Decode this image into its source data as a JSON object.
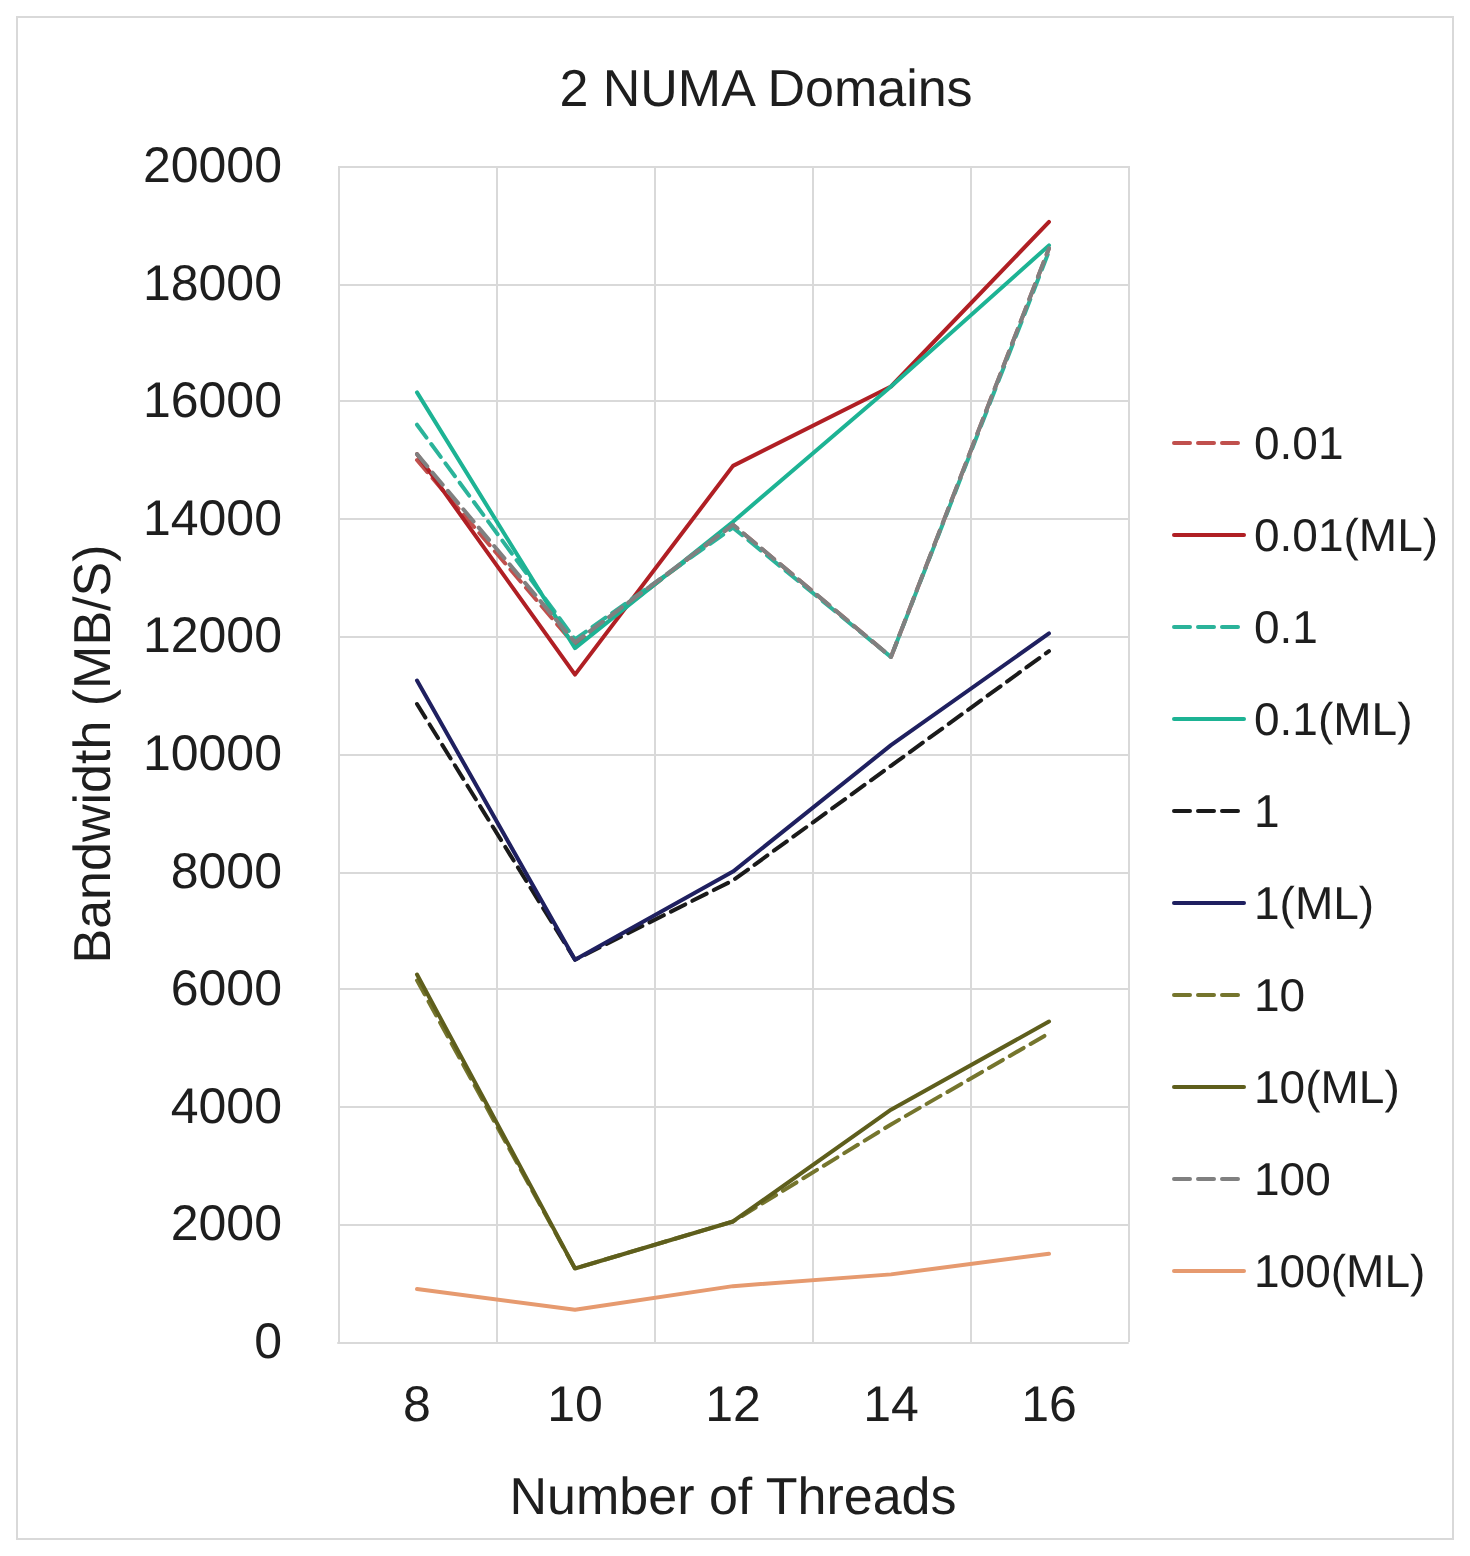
{
  "chart_data": {
    "type": "line",
    "title": "2 NUMA Domains",
    "xlabel": "Number of Threads",
    "ylabel": "Bandwidth (MB/S)",
    "categories": [
      "8",
      "10",
      "12",
      "14",
      "16"
    ],
    "ylim": [
      0,
      20000
    ],
    "yticks": [
      0,
      2000,
      4000,
      6000,
      8000,
      10000,
      12000,
      14000,
      16000,
      18000,
      20000
    ],
    "grid": true,
    "legend": "right",
    "series": [
      {
        "name": "0.01",
        "color": "#c0504d",
        "line_style": "dashed",
        "values": [
          15000,
          11850,
          13900,
          11650,
          18600
        ]
      },
      {
        "name": "0.01(ML)",
        "color": "#b01f24",
        "line_style": "solid",
        "values": [
          15100,
          11350,
          14900,
          16250,
          19050
        ]
      },
      {
        "name": "0.1",
        "color": "#2bb39a",
        "line_style": "dashed",
        "values": [
          15600,
          11950,
          13850,
          11650,
          18550
        ]
      },
      {
        "name": "0.1(ML)",
        "color": "#1db394",
        "line_style": "solid",
        "values": [
          16150,
          11800,
          13950,
          16250,
          18650
        ]
      },
      {
        "name": "1",
        "color": "#1a1a1a",
        "line_style": "dashed",
        "values": [
          10850,
          6500,
          7850,
          9800,
          11750
        ]
      },
      {
        "name": "1(ML)",
        "color": "#1f2060",
        "line_style": "solid",
        "values": [
          11250,
          6500,
          8000,
          10150,
          12050
        ]
      },
      {
        "name": "10",
        "color": "#75752d",
        "line_style": "dashed",
        "values": [
          6150,
          1250,
          2050,
          3700,
          5250
        ]
      },
      {
        "name": "10(ML)",
        "color": "#5e5e1c",
        "line_style": "solid",
        "values": [
          6250,
          1250,
          2050,
          3950,
          5450
        ]
      },
      {
        "name": "100",
        "color": "#808080",
        "line_style": "dashed",
        "values": [
          15100,
          11900,
          13900,
          11650,
          18600
        ]
      },
      {
        "name": "100(ML)",
        "color": "#e69a6f",
        "line_style": "solid",
        "values": [
          900,
          550,
          950,
          1150,
          1500
        ]
      }
    ]
  }
}
